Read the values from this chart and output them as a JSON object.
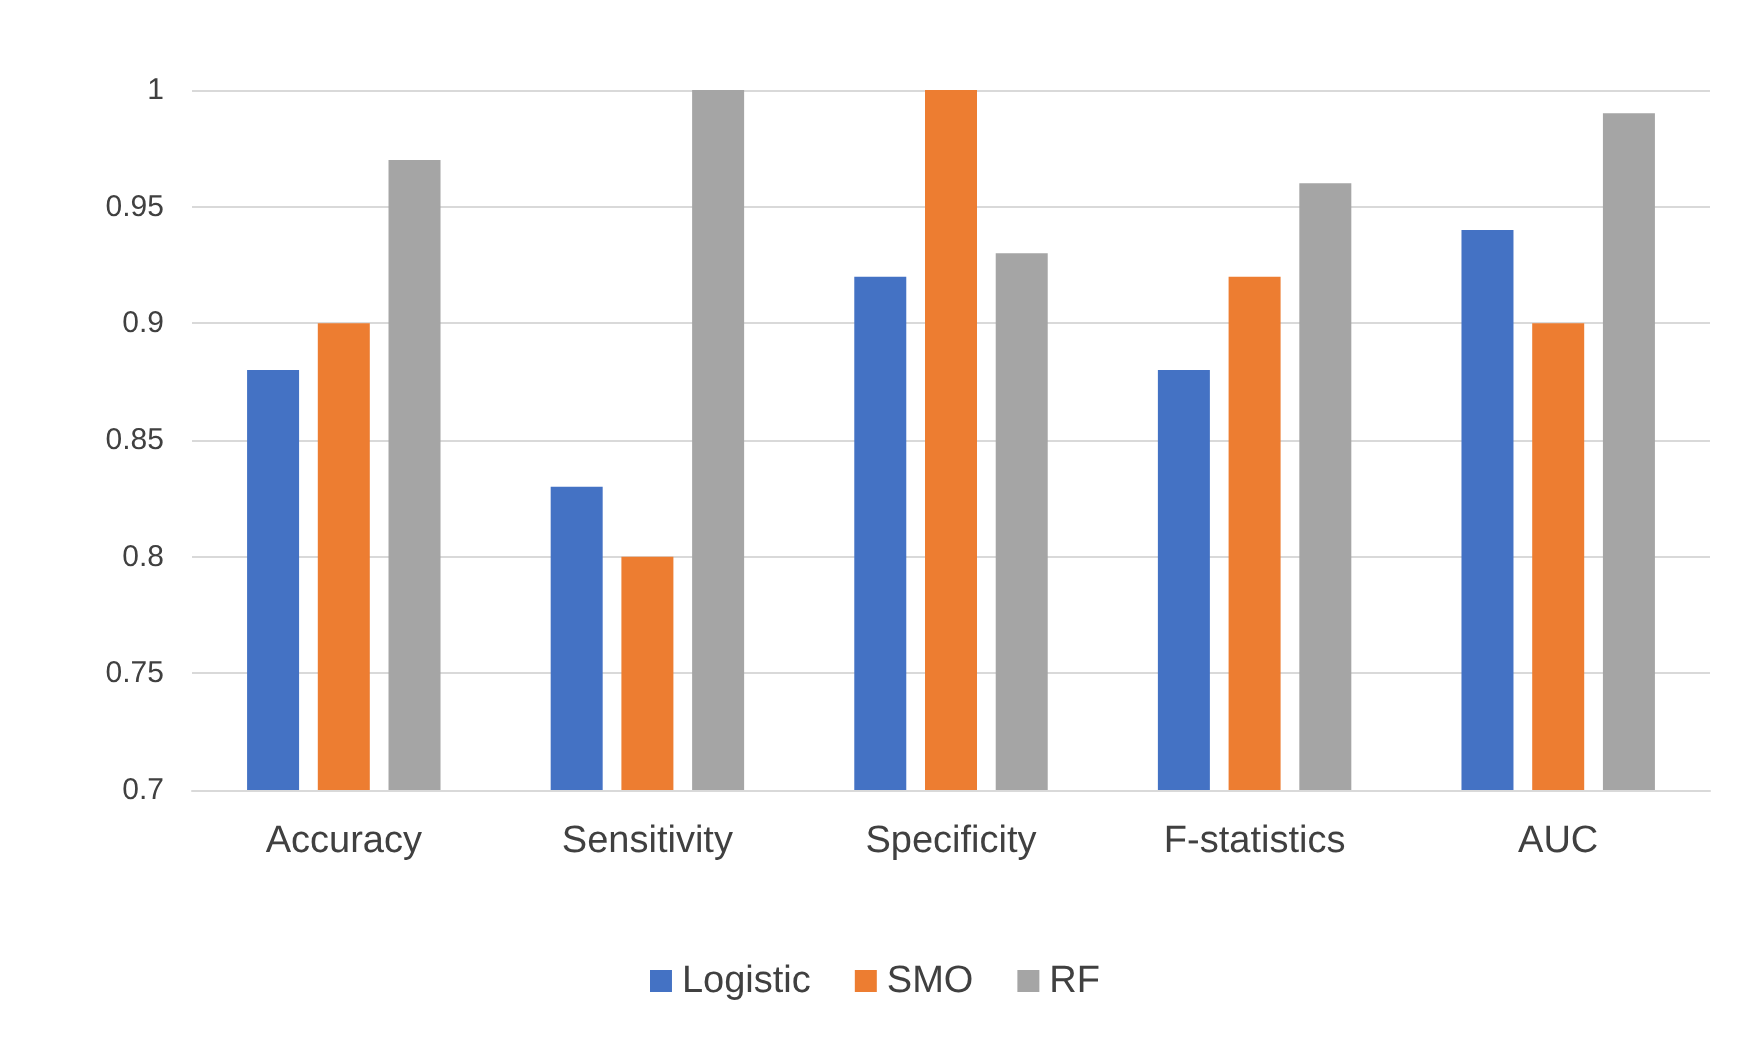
{
  "chart_data": {
    "type": "bar",
    "categories": [
      "Accuracy",
      "Sensitivity",
      "Specificity",
      "F-statistics",
      "AUC"
    ],
    "series": [
      {
        "name": "Logistic",
        "color": "#4472c4",
        "values": [
          0.88,
          0.83,
          0.92,
          0.88,
          0.94
        ]
      },
      {
        "name": "SMO",
        "color": "#ed7d31",
        "values": [
          0.9,
          0.8,
          1,
          0.92,
          0.9
        ]
      },
      {
        "name": "RF",
        "color": "#a5a5a5",
        "values": [
          0.97,
          1,
          0.93,
          0.96,
          0.99
        ]
      }
    ],
    "ylim": [
      0.7,
      1
    ],
    "yticks": [
      0.7,
      0.75,
      0.8,
      0.85,
      0.9,
      0.95,
      1
    ],
    "grid": "y",
    "legend": "bottom"
  }
}
